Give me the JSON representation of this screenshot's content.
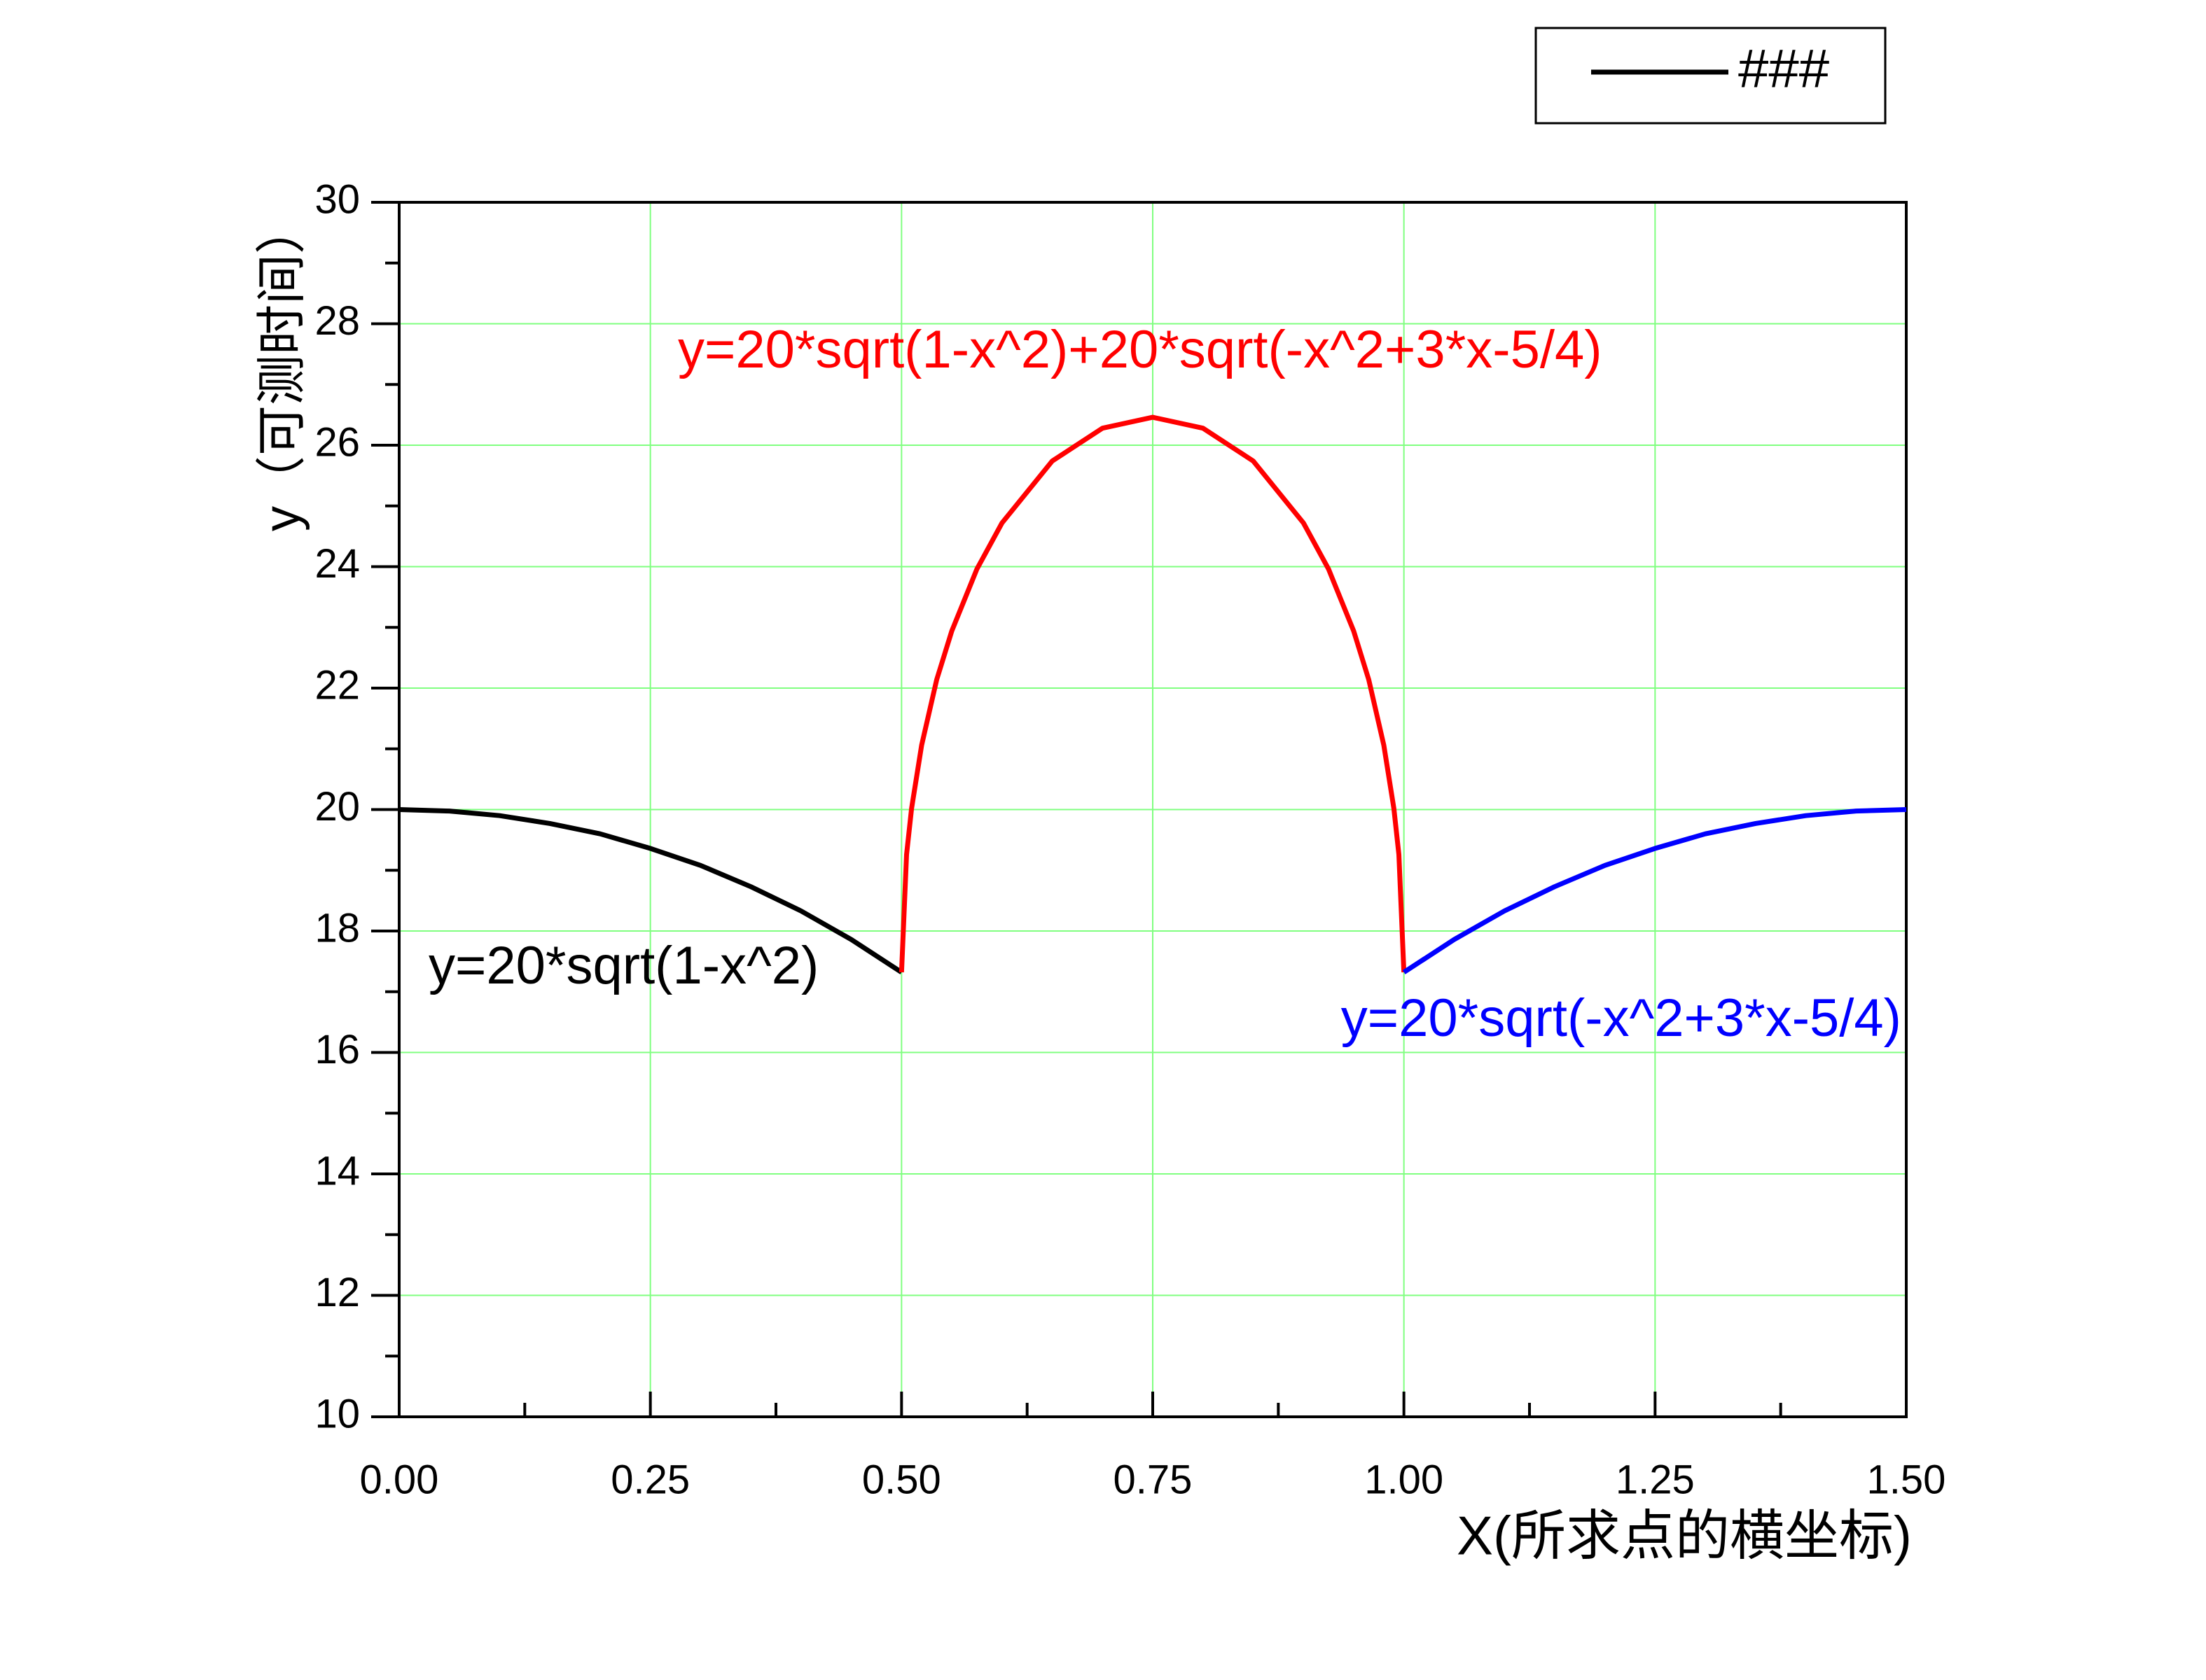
{
  "chart_data": {
    "type": "line",
    "xlabel": "X(所求点的横坐标)",
    "ylabel": "y（可测时间）",
    "legend": {
      "label": "###",
      "color": "#000000"
    },
    "legend_position": "upper right",
    "grid": true,
    "grid_color": "#80ff80",
    "xlim": [
      0,
      1.5
    ],
    "xticks": [
      {
        "value": 0,
        "label": "0.00"
      },
      {
        "value": 0.25,
        "label": "0.25"
      },
      {
        "value": 0.5,
        "label": "0.50"
      },
      {
        "value": 0.75,
        "label": "0.75"
      },
      {
        "value": 1,
        "label": "1.00"
      },
      {
        "value": 1.25,
        "label": "1.25"
      },
      {
        "value": 1.5,
        "label": "1.50"
      }
    ],
    "xminorticks": [
      0.125,
      0.375,
      0.625,
      0.875,
      1.125,
      1.375
    ],
    "ylim": [
      10,
      30
    ],
    "yticks": [
      10,
      12,
      14,
      16,
      18,
      20,
      22,
      24,
      26,
      28,
      30
    ],
    "yminorticks": [
      11,
      13,
      15,
      17,
      19,
      21,
      23,
      25,
      27,
      29
    ],
    "series": [
      {
        "label": "y=20*sqrt(1-x^2)",
        "color": "#000000",
        "x": [
          0,
          0.05,
          0.1,
          0.15,
          0.2,
          0.25,
          0.3,
          0.35,
          0.4,
          0.45,
          0.5
        ],
        "values": [
          20,
          19.975,
          19.9,
          19.77,
          19.6,
          19.36,
          19.08,
          18.73,
          18.33,
          17.86,
          17.32
        ]
      },
      {
        "label": "y=20*sqrt(1-x^2)+20*sqrt(-x^2+3*x-5/4)",
        "color": "#ff0000",
        "x": [
          0.5,
          0.505,
          0.51,
          0.52,
          0.535,
          0.55,
          0.575,
          0.6,
          0.65,
          0.7,
          0.75,
          0.8,
          0.85,
          0.9,
          0.925,
          0.95,
          0.965,
          0.98,
          0.99,
          0.995,
          1
        ],
        "values": [
          17.32,
          19.26,
          20.02,
          21.06,
          22.14,
          22.94,
          23.96,
          24.72,
          25.74,
          26.28,
          26.46,
          26.28,
          25.74,
          24.72,
          23.96,
          22.94,
          22.14,
          21.06,
          20.02,
          19.26,
          17.32
        ]
      },
      {
        "label": "y=20*sqrt(-x^2+3*x-5/4)",
        "color": "#0000ff",
        "x": [
          1,
          1.05,
          1.1,
          1.15,
          1.2,
          1.25,
          1.3,
          1.35,
          1.4,
          1.45,
          1.5
        ],
        "values": [
          17.32,
          17.86,
          18.33,
          18.73,
          19.08,
          19.36,
          19.6,
          19.77,
          19.9,
          19.975,
          20
        ]
      }
    ]
  }
}
